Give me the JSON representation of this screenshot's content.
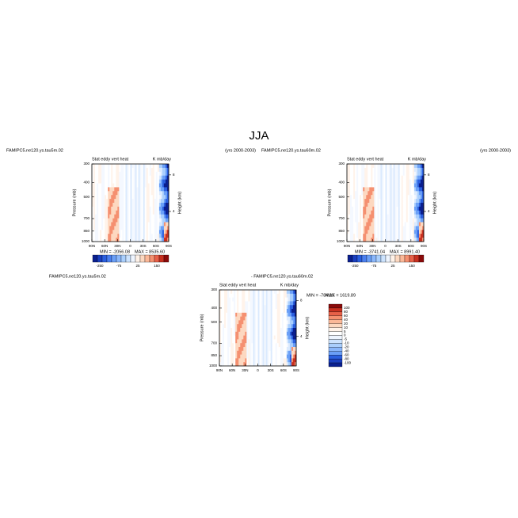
{
  "title": "JJA",
  "chart_data": [
    {
      "type": "contour",
      "left_title": "FAMIPC5.ne120.ys.tau5m.02",
      "right_title": "(yrs 2000-2003)",
      "title": "Stat eddy vert heat",
      "units": "K mb/day",
      "ylabel": "Pressure (mb)",
      "y2label": "Height (km)",
      "xlim": [
        90,
        -90
      ],
      "xticks": [
        {
          "value": 90,
          "label": "90N"
        },
        {
          "value": 60,
          "label": "60N"
        },
        {
          "value": 30,
          "label": "30N"
        },
        0,
        {
          "value": -30,
          "label": "30S"
        },
        {
          "value": -60,
          "label": "60S"
        },
        {
          "value": -90,
          "label": "90S"
        }
      ],
      "ylim": [
        1000,
        300
      ],
      "ylog": true,
      "yticks": [
        300,
        400,
        500,
        700,
        850,
        1000
      ],
      "y2lim": [
        0.7,
        9.2
      ],
      "y2ticks": [
        4,
        8
      ],
      "min_text": "MIN = -2056.08",
      "max_text": "MAX = 8535.60",
      "colorbar": {
        "orientation": "horizontal",
        "ticks": [
          -250,
          -75,
          25,
          150
        ],
        "colors": [
          "#0a1f8f",
          "#1a3fbf",
          "#2a5fdf",
          "#4a7fef",
          "#6a9ff7",
          "#8ab7fb",
          "#aacffd",
          "#cce3fe",
          "#eef5ff",
          "#fff2e8",
          "#fdd8c0",
          "#fbb898",
          "#f59070",
          "#e86048",
          "#c83020",
          "#8a0a0a"
        ]
      }
    },
    {
      "type": "contour",
      "left_title": "FAMIPC5.ne120.ys.tau60m.02",
      "right_title": "(yrs 2000-2003)",
      "title": "Stat eddy vert heat",
      "units": "K mb/day",
      "ylabel": "Pressure (mb)",
      "y2label": "Height (km)",
      "xlim": [
        90,
        -90
      ],
      "xticks": [
        {
          "value": 90,
          "label": "90N"
        },
        {
          "value": 60,
          "label": "60N"
        },
        {
          "value": 30,
          "label": "30N"
        },
        0,
        {
          "value": -30,
          "label": "30S"
        },
        {
          "value": -60,
          "label": "60S"
        },
        {
          "value": -90,
          "label": "90S"
        }
      ],
      "ylim": [
        1000,
        300
      ],
      "ylog": true,
      "yticks": [
        300,
        400,
        500,
        700,
        850,
        1000
      ],
      "y2lim": [
        0.7,
        9.2
      ],
      "y2ticks": [
        4,
        8
      ],
      "min_text": "MIN = -3741.04",
      "max_text": "MAX = 8991.40",
      "colorbar": {
        "orientation": "horizontal",
        "ticks": [
          -250,
          -75,
          25,
          150
        ],
        "colors": [
          "#0a1f8f",
          "#1a3fbf",
          "#2a5fdf",
          "#4a7fef",
          "#6a9ff7",
          "#8ab7fb",
          "#aacffd",
          "#cce3fe",
          "#eef5ff",
          "#fff2e8",
          "#fdd8c0",
          "#fbb898",
          "#f59070",
          "#e86048",
          "#c83020",
          "#8a0a0a"
        ]
      }
    },
    {
      "type": "contour",
      "left_title": "FAMIPC5.ne120.ys.tau5m.02",
      "center_title": "- FAMIPC5.ne120.ys.tau60m.02",
      "title": "Stat eddy vert heat",
      "units": "K mb/day",
      "ylabel": "Pressure (mb)",
      "y2label": "Height (km)",
      "xlim": [
        90,
        -90
      ],
      "xticks": [
        {
          "value": 90,
          "label": "90N"
        },
        {
          "value": 60,
          "label": "60N"
        },
        {
          "value": 30,
          "label": "30N"
        },
        0,
        {
          "value": -30,
          "label": "30S"
        },
        {
          "value": -60,
          "label": "60S"
        },
        {
          "value": -90,
          "label": "90S"
        }
      ],
      "ylim": [
        1000,
        300
      ],
      "ylog": true,
      "yticks": [
        300,
        400,
        500,
        700,
        850,
        1000
      ],
      "y2lim": [
        0.7,
        9.2
      ],
      "y2ticks": [
        4,
        8
      ],
      "min_text": "MIN = -784.25",
      "max_text": "MAX = 1619.89",
      "colorbar": {
        "orientation": "vertical",
        "ticks": [
          100,
          80,
          60,
          40,
          20,
          10,
          5,
          0,
          -5,
          -10,
          -20,
          -40,
          -60,
          -80,
          -100
        ],
        "colors": [
          "#8a0a0a",
          "#c83020",
          "#e86048",
          "#f59070",
          "#fbb898",
          "#fdd8c0",
          "#fff2e8",
          "#ffffff",
          "#eef5ff",
          "#cce3fe",
          "#aacffd",
          "#8ab7fb",
          "#6a9ff7",
          "#2a5fdf",
          "#1a3fbf",
          "#0a1f8f"
        ]
      }
    }
  ]
}
